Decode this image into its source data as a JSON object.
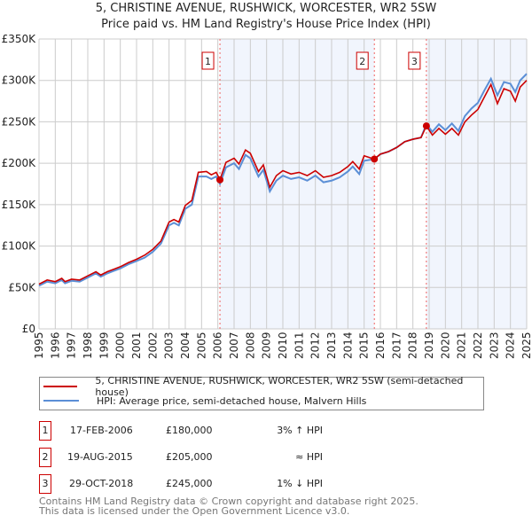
{
  "chart_data": {
    "type": "line",
    "title": "5, CHRISTINE AVENUE, RUSHWICK, WORCESTER, WR2 5SW",
    "subtitle": "Price paid vs. HM Land Registry's House Price Index (HPI)",
    "ylim": [
      0,
      350000
    ],
    "xlim": [
      1995,
      2025
    ],
    "yticks": [
      {
        "v": 0,
        "label": "£0"
      },
      {
        "v": 50000,
        "label": "£50K"
      },
      {
        "v": 100000,
        "label": "£100K"
      },
      {
        "v": 150000,
        "label": "£150K"
      },
      {
        "v": 200000,
        "label": "£200K"
      },
      {
        "v": 250000,
        "label": "£250K"
      },
      {
        "v": 300000,
        "label": "£300K"
      },
      {
        "v": 350000,
        "label": "£350K"
      }
    ],
    "xticks": [
      "1995",
      "1996",
      "1997",
      "1998",
      "1999",
      "2000",
      "2001",
      "2002",
      "2003",
      "2004",
      "2005",
      "2006",
      "2007",
      "2008",
      "2009",
      "2010",
      "2011",
      "2012",
      "2013",
      "2014",
      "2015",
      "2016",
      "2017",
      "2018",
      "2019",
      "2020",
      "2021",
      "2022",
      "2023",
      "2024",
      "2025"
    ],
    "grid": true,
    "series": [
      {
        "name": "5, CHRISTINE AVENUE, RUSHWICK, WORCESTER, WR2 5SW (semi-detached house)",
        "color": "#cc0000",
        "x": [
          1995.0,
          1995.5,
          1996.0,
          1996.4,
          1996.6,
          1997.0,
          1997.5,
          1998.0,
          1998.5,
          1998.8,
          1999.2,
          1999.6,
          2000.0,
          2000.5,
          2001.0,
          2001.5,
          2002.0,
          2002.5,
          2003.0,
          2003.3,
          2003.6,
          2004.0,
          2004.4,
          2004.8,
          2005.3,
          2005.6,
          2005.9,
          2006.13,
          2006.5,
          2007.0,
          2007.3,
          2007.7,
          2008.0,
          2008.5,
          2008.8,
          2009.2,
          2009.6,
          2010.0,
          2010.5,
          2011.0,
          2011.5,
          2012.0,
          2012.5,
          2013.0,
          2013.5,
          2014.0,
          2014.3,
          2014.7,
          2015.0,
          2015.63,
          2016.0,
          2016.5,
          2017.0,
          2017.5,
          2018.0,
          2018.5,
          2018.83,
          2019.2,
          2019.6,
          2020.0,
          2020.4,
          2020.8,
          2021.2,
          2021.6,
          2022.0,
          2022.4,
          2022.8,
          2023.2,
          2023.6,
          2024.0,
          2024.3,
          2024.6,
          2025.0
        ],
        "y": [
          54000,
          59000,
          57000,
          61000,
          57000,
          60000,
          59000,
          64000,
          69000,
          65000,
          69000,
          72000,
          75000,
          80000,
          84000,
          89000,
          96000,
          106000,
          129000,
          132000,
          129000,
          149000,
          155000,
          189000,
          190000,
          186000,
          189000,
          180000,
          201000,
          206000,
          199000,
          216000,
          212000,
          190000,
          198000,
          171000,
          185000,
          191000,
          187000,
          189000,
          185000,
          191000,
          183000,
          185000,
          189000,
          196000,
          202000,
          193000,
          209000,
          205000,
          211000,
          214000,
          219000,
          226000,
          229000,
          231000,
          245000,
          234000,
          242000,
          235000,
          242000,
          234000,
          250000,
          258000,
          265000,
          280000,
          295000,
          272000,
          290000,
          287000,
          275000,
          292000,
          300000
        ]
      },
      {
        "name": "HPI: Average price, semi-detached house, Malvern Hills",
        "color": "#5b8fd6",
        "x": [
          1995.0,
          1995.5,
          1996.0,
          1996.4,
          1996.6,
          1997.0,
          1997.5,
          1998.0,
          1998.5,
          1998.8,
          1999.2,
          1999.6,
          2000.0,
          2000.5,
          2001.0,
          2001.5,
          2002.0,
          2002.5,
          2003.0,
          2003.3,
          2003.6,
          2004.0,
          2004.4,
          2004.8,
          2005.3,
          2005.6,
          2005.9,
          2006.13,
          2006.5,
          2007.0,
          2007.3,
          2007.7,
          2008.0,
          2008.5,
          2008.8,
          2009.2,
          2009.6,
          2010.0,
          2010.5,
          2011.0,
          2011.5,
          2012.0,
          2012.5,
          2013.0,
          2013.5,
          2014.0,
          2014.3,
          2014.7,
          2015.0,
          2015.63,
          2016.0,
          2016.5,
          2017.0,
          2017.5,
          2018.0,
          2018.5,
          2018.83,
          2019.2,
          2019.6,
          2020.0,
          2020.4,
          2020.8,
          2021.2,
          2021.6,
          2022.0,
          2022.4,
          2022.8,
          2023.2,
          2023.6,
          2024.0,
          2024.3,
          2024.6,
          2025.0
        ],
        "y": [
          52000,
          57000,
          55000,
          59000,
          55000,
          58000,
          57000,
          62000,
          67000,
          63000,
          67000,
          70000,
          73000,
          78000,
          82000,
          86000,
          93000,
          103000,
          125000,
          128000,
          125000,
          145000,
          150000,
          184000,
          184000,
          181000,
          184000,
          175000,
          195000,
          200000,
          193000,
          210000,
          206000,
          184000,
          192000,
          166000,
          179000,
          185000,
          181000,
          183000,
          179000,
          185000,
          177000,
          179000,
          183000,
          190000,
          196000,
          187000,
          203000,
          205000,
          211000,
          214000,
          219000,
          226000,
          229000,
          231000,
          247000,
          238000,
          247000,
          240000,
          248000,
          239000,
          257000,
          266000,
          273000,
          288000,
          302000,
          282000,
          298000,
          296000,
          286000,
          300000,
          308000
        ]
      }
    ],
    "sales": [
      {
        "n": "1",
        "x": 2006.13,
        "y": 180000,
        "date": "17-FEB-2006",
        "price": "£180,000",
        "hpi": "3% ↑ HPI"
      },
      {
        "n": "2",
        "x": 2015.63,
        "y": 205000,
        "date": "19-AUG-2015",
        "price": "£205,000",
        "hpi": "≈ HPI"
      },
      {
        "n": "3",
        "x": 2018.83,
        "y": 245000,
        "date": "29-OCT-2018",
        "price": "£245,000",
        "hpi": "1% ↓ HPI"
      }
    ],
    "legend_position": "below"
  },
  "footer": {
    "line1": "Contains HM Land Registry data © Crown copyright and database right 2025.",
    "line2": "This data is licensed under the Open Government Licence v3.0."
  }
}
